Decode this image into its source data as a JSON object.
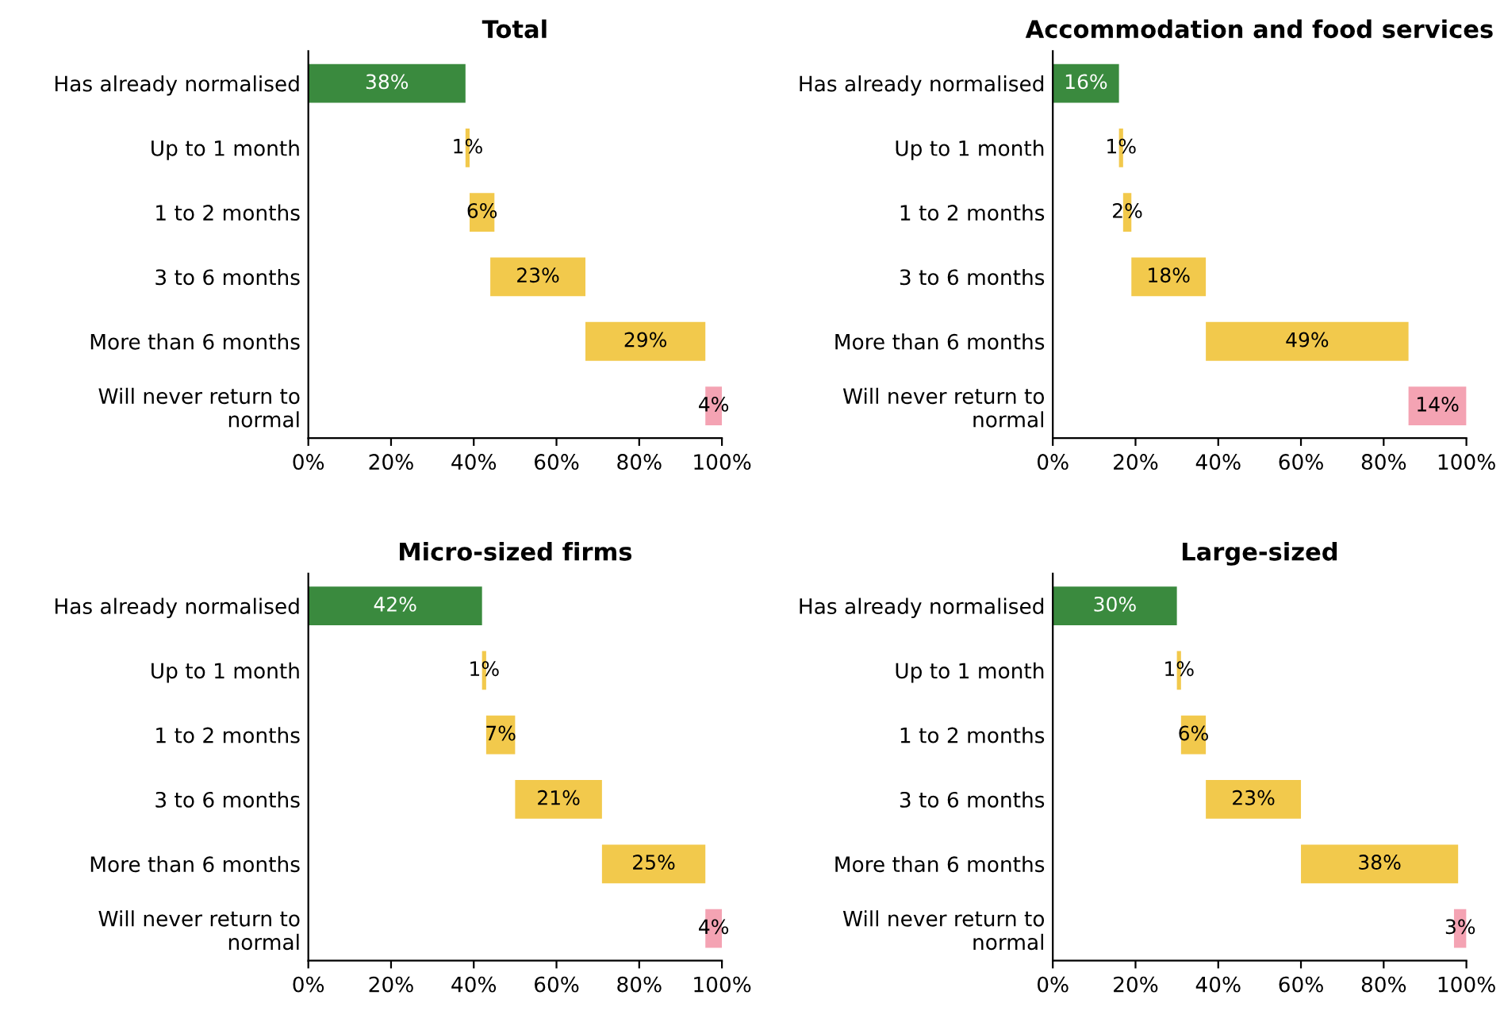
{
  "chart_data": [
    {
      "type": "bar",
      "orientation": "horizontal",
      "title": "Total",
      "categories": [
        "Has already normalised",
        "Up to 1 month",
        "1 to 2 months",
        "3 to 6 months",
        "More than 6 months",
        "Will never return to\nnormal"
      ],
      "values": [
        38,
        1,
        6,
        23,
        29,
        4
      ],
      "base": [
        0,
        38,
        39,
        44,
        67,
        96
      ],
      "value_labels": [
        "38%",
        "1%",
        "6%",
        "23%",
        "29%",
        "4%"
      ],
      "colors": [
        "#3a8a3e",
        "#f2c94c",
        "#f2c94c",
        "#f2c94c",
        "#f2c94c",
        "#f4a3b3"
      ],
      "xlim": [
        0,
        100
      ],
      "xticks": [
        {
          "value": 0,
          "label": "0%"
        },
        {
          "value": 20,
          "label": "20%"
        },
        {
          "value": 40,
          "label": "40%"
        },
        {
          "value": 60,
          "label": "60%"
        },
        {
          "value": 80,
          "label": "80%"
        },
        {
          "value": 100,
          "label": "100%"
        }
      ],
      "grid": false,
      "legend": false
    },
    {
      "type": "bar",
      "orientation": "horizontal",
      "title": "Accommodation and food services",
      "categories": [
        "Has already normalised",
        "Up to 1 month",
        "1 to 2 months",
        "3 to 6 months",
        "More than 6 months",
        "Will never return to\nnormal"
      ],
      "values": [
        16,
        1,
        2,
        18,
        49,
        14
      ],
      "base": [
        0,
        16,
        17,
        19,
        37,
        86
      ],
      "value_labels": [
        "16%",
        "1%",
        "2%",
        "18%",
        "49%",
        "14%"
      ],
      "colors": [
        "#3a8a3e",
        "#f2c94c",
        "#f2c94c",
        "#f2c94c",
        "#f2c94c",
        "#f4a3b3"
      ],
      "xlim": [
        0,
        100
      ],
      "xticks": [
        {
          "value": 0,
          "label": "0%"
        },
        {
          "value": 20,
          "label": "20%"
        },
        {
          "value": 40,
          "label": "40%"
        },
        {
          "value": 60,
          "label": "60%"
        },
        {
          "value": 80,
          "label": "80%"
        },
        {
          "value": 100,
          "label": "100%"
        }
      ],
      "grid": false,
      "legend": false
    },
    {
      "type": "bar",
      "orientation": "horizontal",
      "title": "Micro-sized firms",
      "categories": [
        "Has already normalised",
        "Up to 1 month",
        "1 to 2 months",
        "3 to 6 months",
        "More than 6 months",
        "Will never return to\nnormal"
      ],
      "values": [
        42,
        1,
        7,
        21,
        25,
        4
      ],
      "base": [
        0,
        42,
        43,
        50,
        71,
        96
      ],
      "value_labels": [
        "42%",
        "1%",
        "7%",
        "21%",
        "25%",
        "4%"
      ],
      "colors": [
        "#3a8a3e",
        "#f2c94c",
        "#f2c94c",
        "#f2c94c",
        "#f2c94c",
        "#f4a3b3"
      ],
      "xlim": [
        0,
        100
      ],
      "xticks": [
        {
          "value": 0,
          "label": "0%"
        },
        {
          "value": 20,
          "label": "20%"
        },
        {
          "value": 40,
          "label": "40%"
        },
        {
          "value": 60,
          "label": "60%"
        },
        {
          "value": 80,
          "label": "80%"
        },
        {
          "value": 100,
          "label": "100%"
        }
      ],
      "grid": false,
      "legend": false
    },
    {
      "type": "bar",
      "orientation": "horizontal",
      "title": "Large-sized",
      "categories": [
        "Has already normalised",
        "Up to 1 month",
        "1 to 2 months",
        "3 to 6 months",
        "More than 6 months",
        "Will never return to\nnormal"
      ],
      "values": [
        30,
        1,
        6,
        23,
        38,
        3
      ],
      "base": [
        0,
        30,
        31,
        37,
        60,
        97
      ],
      "value_labels": [
        "30%",
        "1%",
        "6%",
        "23%",
        "38%",
        "3%"
      ],
      "colors": [
        "#3a8a3e",
        "#f2c94c",
        "#f2c94c",
        "#f2c94c",
        "#f2c94c",
        "#f4a3b3"
      ],
      "xlim": [
        0,
        100
      ],
      "xticks": [
        {
          "value": 0,
          "label": "0%"
        },
        {
          "value": 20,
          "label": "20%"
        },
        {
          "value": 40,
          "label": "40%"
        },
        {
          "value": 60,
          "label": "60%"
        },
        {
          "value": 80,
          "label": "80%"
        },
        {
          "value": 100,
          "label": "100%"
        }
      ],
      "grid": false,
      "legend": false
    }
  ]
}
